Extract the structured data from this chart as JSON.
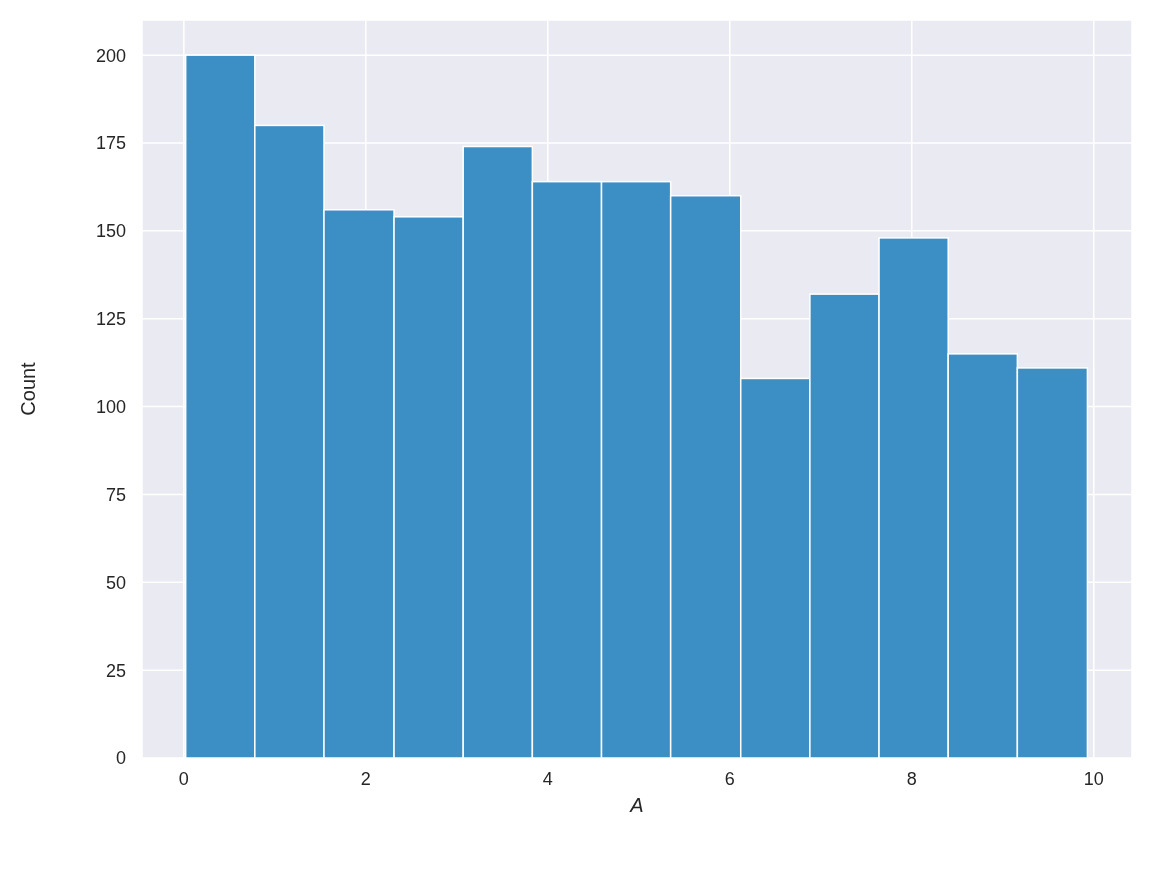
{
  "chart_data": {
    "type": "histogram",
    "xlabel": "A",
    "ylabel": "Count",
    "bins": [
      0.02,
      0.78,
      1.54,
      2.31,
      3.07,
      3.83,
      4.59,
      5.35,
      6.12,
      6.88,
      7.64,
      8.4,
      9.16,
      9.93
    ],
    "values": [
      200,
      180,
      156,
      154,
      174,
      164,
      164,
      160,
      108,
      132,
      148,
      115,
      111
    ],
    "color": "#3b8fc4",
    "xlim": [
      -0.46,
      10.42
    ],
    "xticks": [
      0,
      2,
      4,
      6,
      8,
      10
    ],
    "ylim": [
      0,
      210
    ],
    "yticks": [
      0,
      25,
      50,
      75,
      100,
      125,
      150,
      175,
      200
    ],
    "grid": true
  }
}
